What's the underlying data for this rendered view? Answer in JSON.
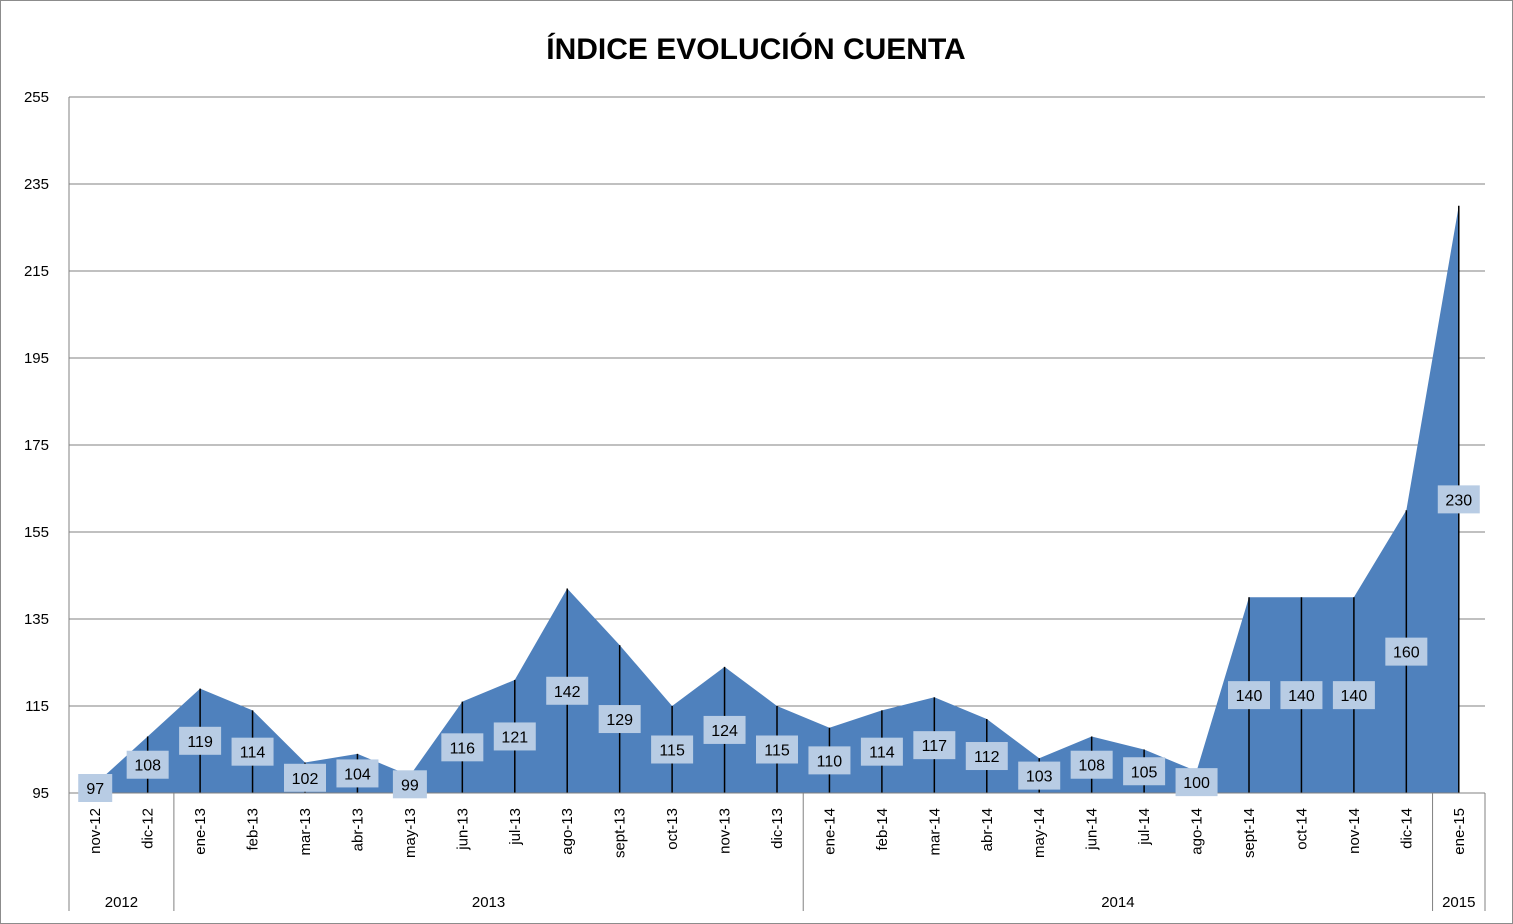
{
  "chart_data": {
    "type": "area",
    "title": "ÍNDICE EVOLUCIÓN CUENTA",
    "xlabel": "",
    "ylabel": "",
    "ylim": [
      95,
      255
    ],
    "yticks": [
      95,
      115,
      135,
      155,
      175,
      195,
      215,
      235,
      255
    ],
    "grid": true,
    "legend": "none",
    "colors": {
      "area": "#4f81bd",
      "label_bg": "#b8cce4",
      "grid": "#808080"
    },
    "categories": [
      "nov-12",
      "dic-12",
      "ene-13",
      "feb-13",
      "mar-13",
      "abr-13",
      "may-13",
      "jun-13",
      "jul-13",
      "ago-13",
      "sept-13",
      "oct-13",
      "nov-13",
      "dic-13",
      "ene-14",
      "feb-14",
      "mar-14",
      "abr-14",
      "may-14",
      "jun-14",
      "jul-14",
      "ago-14",
      "sept-14",
      "oct-14",
      "nov-14",
      "dic-14",
      "ene-15"
    ],
    "values": [
      97,
      108,
      119,
      114,
      102,
      104,
      99,
      116,
      121,
      142,
      129,
      115,
      124,
      115,
      110,
      114,
      117,
      112,
      103,
      108,
      105,
      100,
      140,
      140,
      140,
      160,
      230
    ],
    "year_groups": [
      {
        "label": "2012",
        "start": 0,
        "end": 1
      },
      {
        "label": "2013",
        "start": 2,
        "end": 13
      },
      {
        "label": "2014",
        "start": 14,
        "end": 25
      },
      {
        "label": "2015",
        "start": 26,
        "end": 26
      }
    ]
  }
}
